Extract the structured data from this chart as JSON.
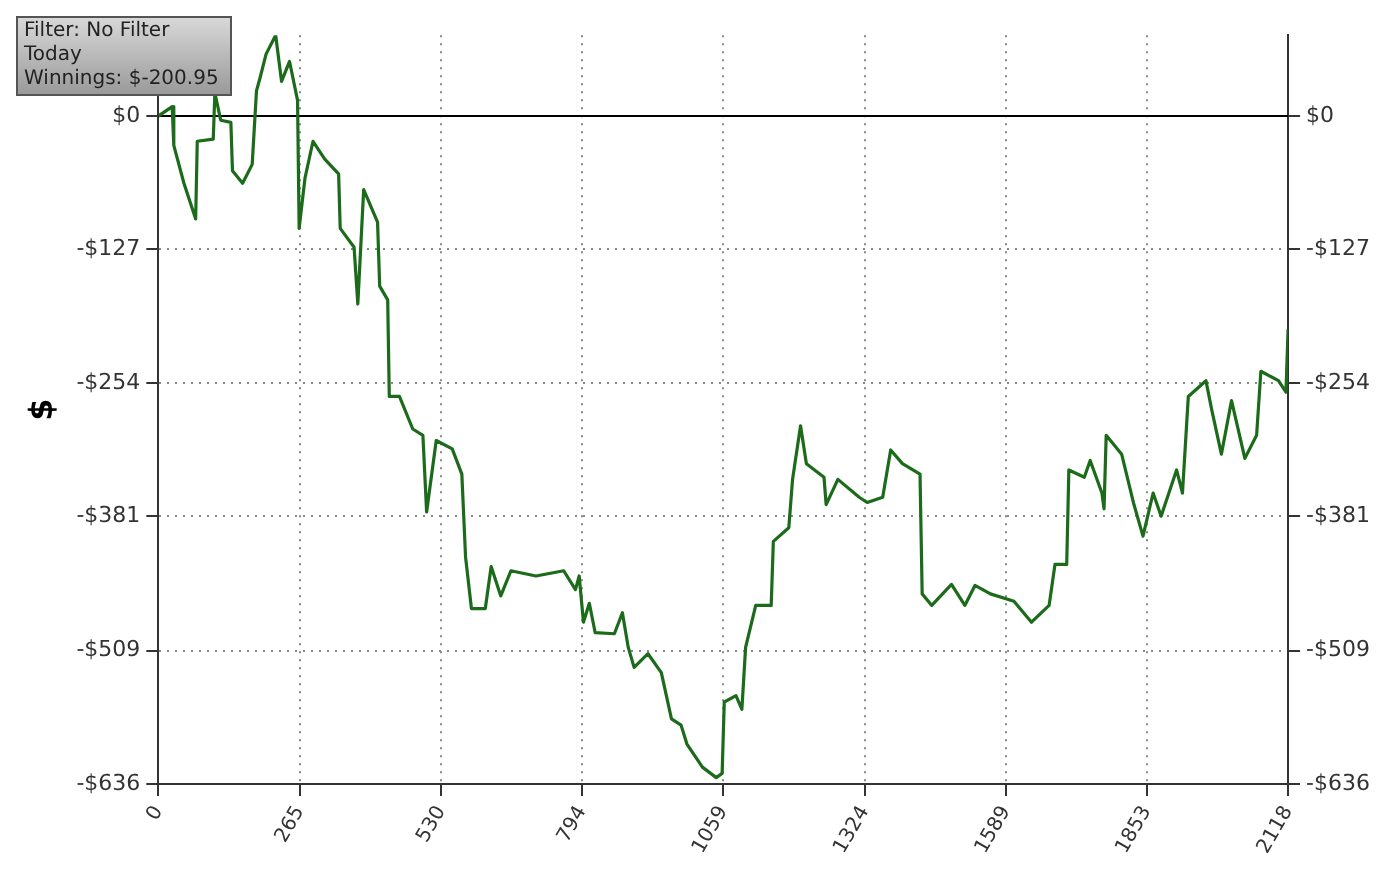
{
  "chart_data": {
    "type": "line",
    "ylabel": "$",
    "annotations": [
      "Filter: No Filter",
      "Today",
      "Winnings: $-200.95"
    ],
    "xlim": [
      0,
      2118
    ],
    "xticks": [
      0,
      265,
      530,
      794,
      1059,
      1324,
      1589,
      1853,
      2118
    ],
    "ylim": [
      -636,
      77
    ],
    "yticks": [
      {
        "value": 0,
        "label": "$0"
      },
      {
        "value": -127,
        "label": "-$127"
      },
      {
        "value": -254,
        "label": "-$254"
      },
      {
        "value": -381,
        "label": "-$381"
      },
      {
        "value": -509,
        "label": "-$509"
      },
      {
        "value": -636,
        "label": "-$636"
      }
    ],
    "y2lim": [
      -636,
      77
    ],
    "y2ticks": [
      {
        "value": 0,
        "label": "$0"
      },
      {
        "value": -127,
        "label": "-$127"
      },
      {
        "value": -254,
        "label": "-$254"
      },
      {
        "value": -381,
        "label": "-$381"
      },
      {
        "value": -509,
        "label": "-$509"
      },
      {
        "value": -636,
        "label": "-$636"
      }
    ],
    "grid": true,
    "line_style": "solid",
    "marker": "none",
    "ref_lines": [
      {
        "axis": "y",
        "value": 0,
        "color": "#000000"
      }
    ],
    "series": [
      {
        "color": "#1b6b1b",
        "x": [
          0,
          26,
          29,
          48,
          70,
          73,
          103,
          106,
          117,
          136,
          139,
          158,
          176,
          184,
          191,
          202,
          220,
          231,
          246,
          261,
          264,
          275,
          290,
          312,
          338,
          341,
          367,
          374,
          385,
          411,
          415,
          430,
          433,
          452,
          477,
          496,
          503,
          521,
          551,
          569,
          576,
          587,
          613,
          624,
          642,
          661,
          708,
          760,
          782,
          789,
          797,
          808,
          819,
          855,
          870,
          881,
          892,
          918,
          943,
          962,
          980,
          991,
          1020,
          1046,
          1057,
          1061,
          1083,
          1094,
          1101,
          1120,
          1149,
          1153,
          1182,
          1189,
          1204,
          1215,
          1248,
          1252,
          1274,
          1314,
          1329,
          1358,
          1373,
          1395,
          1428,
          1432,
          1450,
          1487,
          1512,
          1531,
          1560,
          1604,
          1637,
          1670,
          1681,
          1703,
          1707,
          1736,
          1747,
          1769,
          1773,
          1777,
          1806,
          1828,
          1846,
          1865,
          1880,
          1909,
          1920,
          1931,
          1964,
          1975,
          1993,
          2012,
          2037,
          2059,
          2067,
          2100,
          2114,
          2118
        ],
        "values": [
          0,
          9,
          -28,
          -64,
          -98,
          -24,
          -22,
          22,
          -4,
          -6,
          -52,
          -64,
          -46,
          24,
          37,
          59,
          77,
          33,
          52,
          15,
          -107,
          -59,
          -24,
          -41,
          -55,
          -107,
          -125,
          -179,
          -70,
          -101,
          -162,
          -175,
          -267,
          -267,
          -298,
          -304,
          -377,
          -309,
          -317,
          -341,
          -420,
          -469,
          -469,
          -429,
          -457,
          -433,
          -438,
          -433,
          -451,
          -438,
          -482,
          -464,
          -492,
          -493,
          -473,
          -506,
          -525,
          -512,
          -530,
          -574,
          -580,
          -598,
          -620,
          -630,
          -626,
          -558,
          -552,
          -565,
          -506,
          -466,
          -466,
          -405,
          -392,
          -346,
          -295,
          -331,
          -344,
          -370,
          -346,
          -363,
          -368,
          -363,
          -318,
          -331,
          -341,
          -455,
          -466,
          -446,
          -466,
          -447,
          -455,
          -462,
          -482,
          -466,
          -427,
          -427,
          -337,
          -344,
          -328,
          -359,
          -374,
          -304,
          -322,
          -368,
          -400,
          -359,
          -381,
          -337,
          -359,
          -267,
          -252,
          -280,
          -322,
          -271,
          -326,
          -304,
          -243,
          -252,
          -263,
          -203
        ]
      }
    ]
  }
}
